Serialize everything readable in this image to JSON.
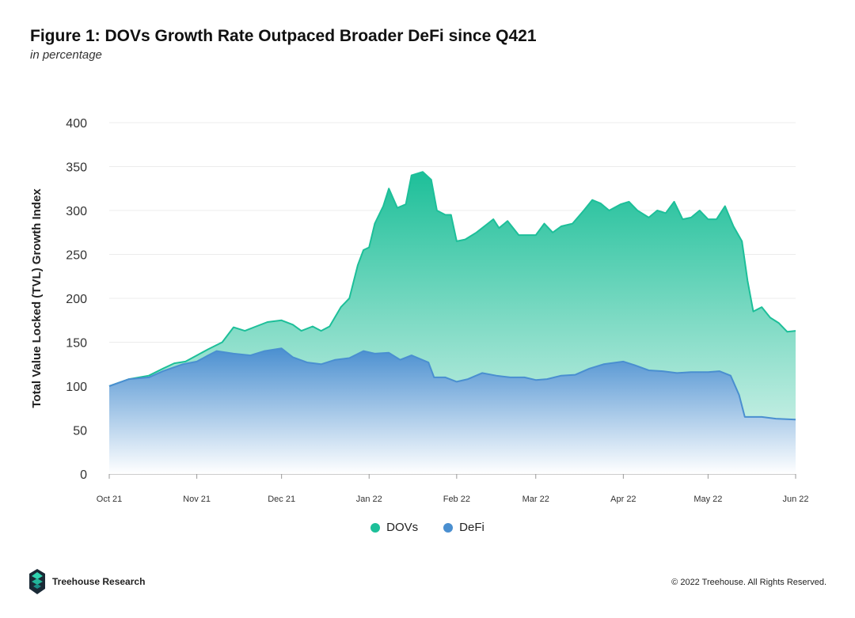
{
  "header": {
    "title": "Figure 1: DOVs Growth Rate Outpaced Broader DeFi since Q421",
    "subtitle": "in percentage"
  },
  "footer": {
    "brand": "Treehouse Research",
    "copyright": "© 2022 Treehouse. All Rights Reserved."
  },
  "chart_data": {
    "type": "area",
    "title": "Figure 1: DOVs Growth Rate Outpaced Broader DeFi since Q421",
    "subtitle": "in percentage",
    "xlabel": "",
    "ylabel": "Total Value Locked (TVL) Growth Index",
    "xlim": [
      "2021-10-01",
      "2022-06-01"
    ],
    "ylim": [
      0,
      400
    ],
    "yticks": [
      0,
      50,
      100,
      150,
      200,
      250,
      300,
      350,
      400
    ],
    "xticks": [
      {
        "date": "2021-10-01",
        "label": "Oct 21"
      },
      {
        "date": "2021-11-01",
        "label": "Nov 21"
      },
      {
        "date": "2021-12-01",
        "label": "Dec 21"
      },
      {
        "date": "2022-01-01",
        "label": "Jan 22"
      },
      {
        "date": "2022-02-01",
        "label": "Feb 22"
      },
      {
        "date": "2022-03-01",
        "label": "Mar 22"
      },
      {
        "date": "2022-04-01",
        "label": "Apr 22"
      },
      {
        "date": "2022-05-01",
        "label": "May 22"
      },
      {
        "date": "2022-06-01",
        "label": "Jun 22"
      }
    ],
    "grid": true,
    "legend_position": "bottom",
    "series": [
      {
        "name": "DOVs",
        "color": "#1dbf99",
        "points": [
          [
            "2021-10-01",
            100
          ],
          [
            "2021-10-08",
            108
          ],
          [
            "2021-10-15",
            112
          ],
          [
            "2021-10-20",
            120
          ],
          [
            "2021-10-24",
            126
          ],
          [
            "2021-10-28",
            128
          ],
          [
            "2021-11-01",
            135
          ],
          [
            "2021-11-05",
            142
          ],
          [
            "2021-11-10",
            150
          ],
          [
            "2021-11-14",
            167
          ],
          [
            "2021-11-18",
            163
          ],
          [
            "2021-11-22",
            168
          ],
          [
            "2021-11-26",
            173
          ],
          [
            "2021-12-01",
            175
          ],
          [
            "2021-12-05",
            170
          ],
          [
            "2021-12-08",
            163
          ],
          [
            "2021-12-12",
            168
          ],
          [
            "2021-12-15",
            163
          ],
          [
            "2021-12-18",
            168
          ],
          [
            "2021-12-22",
            190
          ],
          [
            "2021-12-25",
            200
          ],
          [
            "2021-12-28",
            238
          ],
          [
            "2021-12-30",
            255
          ],
          [
            "2022-01-01",
            258
          ],
          [
            "2022-01-03",
            285
          ],
          [
            "2022-01-06",
            305
          ],
          [
            "2022-01-08",
            325
          ],
          [
            "2022-01-11",
            303
          ],
          [
            "2022-01-14",
            307
          ],
          [
            "2022-01-16",
            340
          ],
          [
            "2022-01-20",
            344
          ],
          [
            "2022-01-23",
            335
          ],
          [
            "2022-01-25",
            300
          ],
          [
            "2022-01-28",
            295
          ],
          [
            "2022-01-30",
            295
          ],
          [
            "2022-02-01",
            265
          ],
          [
            "2022-02-04",
            267
          ],
          [
            "2022-02-08",
            275
          ],
          [
            "2022-02-12",
            285
          ],
          [
            "2022-02-14",
            290
          ],
          [
            "2022-02-16",
            280
          ],
          [
            "2022-02-19",
            288
          ],
          [
            "2022-02-23",
            272
          ],
          [
            "2022-02-26",
            272
          ],
          [
            "2022-03-01",
            272
          ],
          [
            "2022-03-04",
            285
          ],
          [
            "2022-03-07",
            275
          ],
          [
            "2022-03-10",
            282
          ],
          [
            "2022-03-14",
            285
          ],
          [
            "2022-03-18",
            300
          ],
          [
            "2022-03-21",
            312
          ],
          [
            "2022-03-24",
            308
          ],
          [
            "2022-03-27",
            300
          ],
          [
            "2022-03-31",
            307
          ],
          [
            "2022-04-03",
            310
          ],
          [
            "2022-04-06",
            300
          ],
          [
            "2022-04-10",
            292
          ],
          [
            "2022-04-13",
            300
          ],
          [
            "2022-04-16",
            297
          ],
          [
            "2022-04-19",
            310
          ],
          [
            "2022-04-22",
            290
          ],
          [
            "2022-04-25",
            292
          ],
          [
            "2022-04-28",
            300
          ],
          [
            "2022-05-01",
            290
          ],
          [
            "2022-05-04",
            290
          ],
          [
            "2022-05-07",
            305
          ],
          [
            "2022-05-10",
            282
          ],
          [
            "2022-05-13",
            265
          ],
          [
            "2022-05-15",
            220
          ],
          [
            "2022-05-17",
            185
          ],
          [
            "2022-05-20",
            190
          ],
          [
            "2022-05-23",
            178
          ],
          [
            "2022-05-26",
            172
          ],
          [
            "2022-05-29",
            162
          ],
          [
            "2022-06-01",
            163
          ]
        ]
      },
      {
        "name": "DeFi",
        "color": "#4a8fd0",
        "points": [
          [
            "2021-10-01",
            100
          ],
          [
            "2021-10-08",
            108
          ],
          [
            "2021-10-15",
            110
          ],
          [
            "2021-10-20",
            117
          ],
          [
            "2021-10-27",
            125
          ],
          [
            "2021-11-01",
            128
          ],
          [
            "2021-11-05",
            135
          ],
          [
            "2021-11-08",
            140
          ],
          [
            "2021-11-14",
            137
          ],
          [
            "2021-11-20",
            135
          ],
          [
            "2021-11-25",
            140
          ],
          [
            "2021-12-01",
            143
          ],
          [
            "2021-12-05",
            133
          ],
          [
            "2021-12-10",
            127
          ],
          [
            "2021-12-15",
            125
          ],
          [
            "2021-12-20",
            130
          ],
          [
            "2021-12-25",
            132
          ],
          [
            "2021-12-30",
            140
          ],
          [
            "2022-01-03",
            137
          ],
          [
            "2022-01-08",
            138
          ],
          [
            "2022-01-12",
            130
          ],
          [
            "2022-01-16",
            135
          ],
          [
            "2022-01-22",
            127
          ],
          [
            "2022-01-24",
            110
          ],
          [
            "2022-01-28",
            110
          ],
          [
            "2022-02-01",
            105
          ],
          [
            "2022-02-05",
            108
          ],
          [
            "2022-02-10",
            115
          ],
          [
            "2022-02-15",
            112
          ],
          [
            "2022-02-20",
            110
          ],
          [
            "2022-02-25",
            110
          ],
          [
            "2022-03-01",
            107
          ],
          [
            "2022-03-05",
            108
          ],
          [
            "2022-03-10",
            112
          ],
          [
            "2022-03-15",
            113
          ],
          [
            "2022-03-20",
            120
          ],
          [
            "2022-03-25",
            125
          ],
          [
            "2022-04-01",
            128
          ],
          [
            "2022-04-05",
            124
          ],
          [
            "2022-04-10",
            118
          ],
          [
            "2022-04-15",
            117
          ],
          [
            "2022-04-20",
            115
          ],
          [
            "2022-04-25",
            116
          ],
          [
            "2022-05-01",
            116
          ],
          [
            "2022-05-05",
            117
          ],
          [
            "2022-05-09",
            112
          ],
          [
            "2022-05-12",
            90
          ],
          [
            "2022-05-14",
            65
          ],
          [
            "2022-05-20",
            65
          ],
          [
            "2022-05-25",
            63
          ],
          [
            "2022-06-01",
            62
          ]
        ]
      }
    ]
  }
}
